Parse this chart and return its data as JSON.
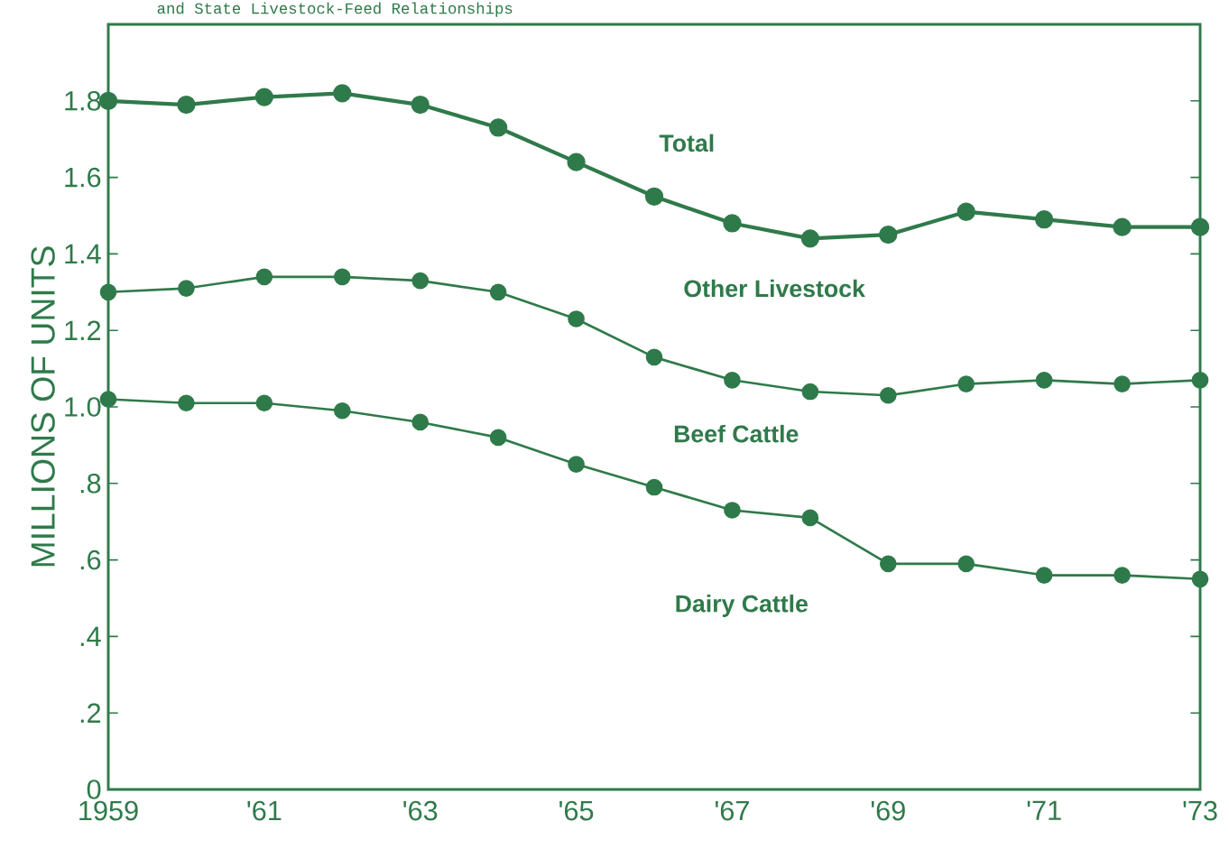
{
  "chart_data": {
    "type": "line",
    "title": "and State Livestock-Feed Relationships",
    "ylabel": "MILLIONS OF UNITS",
    "x": [
      1959,
      1960,
      1961,
      1962,
      1963,
      1964,
      1965,
      1966,
      1967,
      1968,
      1969,
      1970,
      1971,
      1972,
      1973
    ],
    "series": [
      {
        "color": "#2f7a4a",
        "values": [
          1.8,
          1.79,
          1.81,
          1.82,
          1.79,
          1.73,
          1.64,
          1.55,
          1.48,
          1.44,
          1.45,
          1.51,
          1.49,
          1.47,
          1.47
        ]
      },
      {
        "color": "#2f7a4a",
        "values": [
          1.3,
          1.31,
          1.34,
          1.34,
          1.33,
          1.3,
          1.23,
          1.13,
          1.07,
          1.04,
          1.03,
          1.06,
          1.07,
          1.06,
          1.07
        ]
      },
      {
        "color": "#2f7a4a",
        "values": [
          1.02,
          1.01,
          1.01,
          0.99,
          0.96,
          0.92,
          0.85,
          0.79,
          0.73,
          0.71,
          0.59,
          0.59,
          0.56,
          0.56,
          0.55
        ]
      }
    ],
    "annotations": [
      "Total",
      "Other Livestock",
      "Beef Cattle",
      "Dairy Cattle"
    ],
    "xlim": [
      1959,
      1973
    ],
    "ylim": [
      0,
      2.0
    ],
    "xticks": [
      1959,
      {
        "value": 1961,
        "label": "'61"
      },
      {
        "value": 1963,
        "label": "'63"
      },
      {
        "value": 1965,
        "label": "'65"
      },
      {
        "value": 1967,
        "label": "'67"
      },
      {
        "value": 1969,
        "label": "'69"
      },
      {
        "value": 1971,
        "label": "'71"
      },
      {
        "value": 1973,
        "label": "'73"
      }
    ],
    "yticks": [
      0,
      {
        "value": 0.2,
        "label": ".2"
      },
      {
        "value": 0.4,
        "label": ".4"
      },
      {
        "value": 0.6,
        "label": ".6"
      },
      {
        "value": 0.8,
        "label": ".8"
      },
      {
        "value": 1.0,
        "label": "1.0"
      },
      1.2,
      1.4,
      1.6,
      1.8
    ],
    "grid": false,
    "marker": "circle",
    "line_style": "solid"
  }
}
